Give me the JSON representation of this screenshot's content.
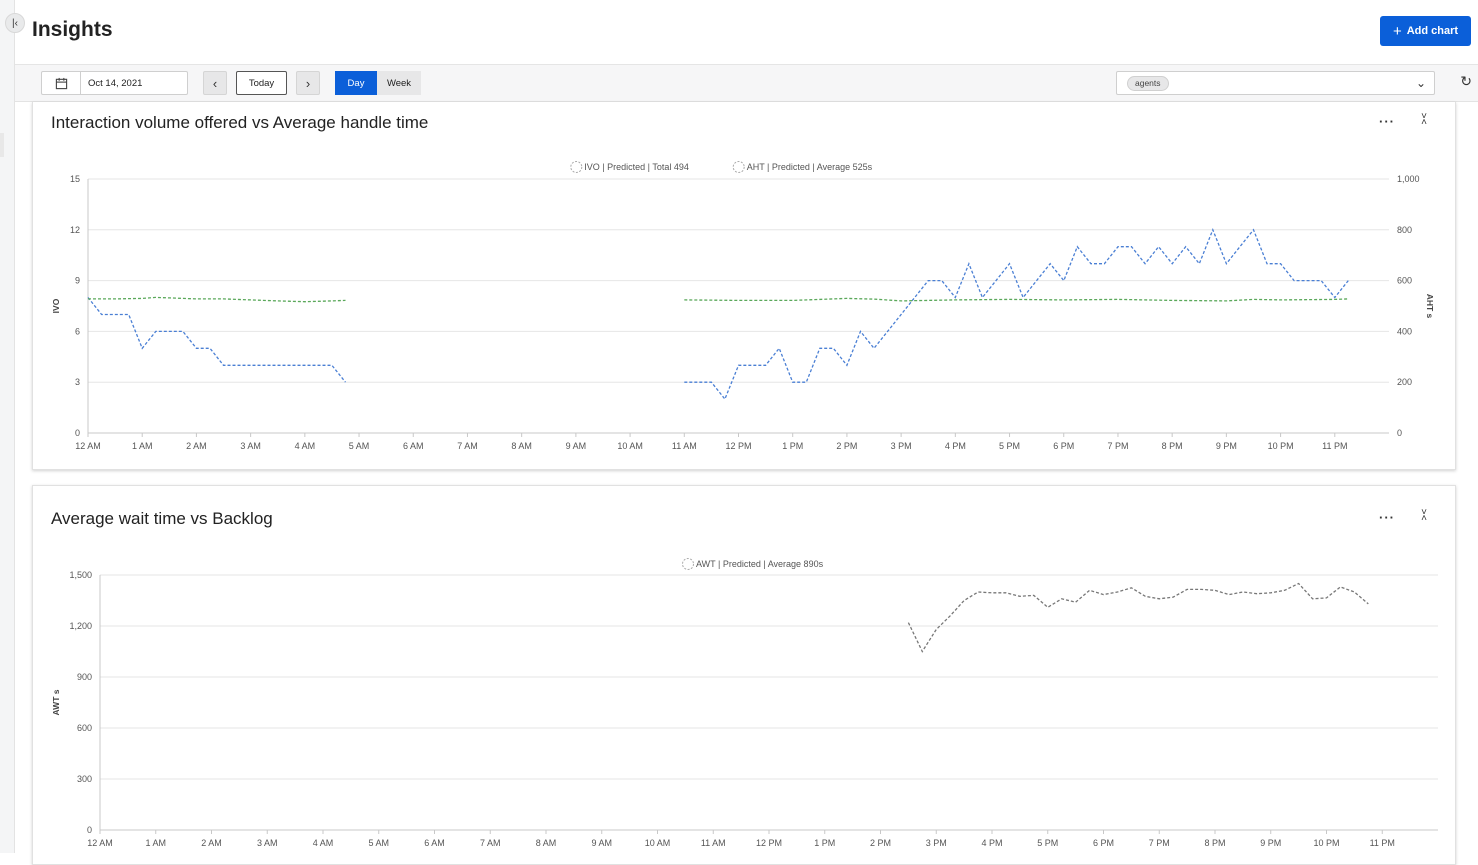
{
  "header": {
    "title": "Insights",
    "add_chart_label": "Add chart"
  },
  "toolbar": {
    "date_value": "Oct 14, 2021",
    "today_label": "Today",
    "prev_icon": "chevron-left-icon",
    "next_icon": "chevron-right-icon",
    "view_options": [
      "Day",
      "Week"
    ],
    "selected_view": "Day",
    "filter_chip": "agents"
  },
  "colors": {
    "accent": "#0b5fd9",
    "ivo_line": "#4a7fd4",
    "aht_line": "#5aa85a",
    "awt_line": "#777777"
  },
  "chart_data": [
    {
      "type": "line",
      "title": "Interaction volume offered vs Average handle time",
      "legend": [
        "IVO | Predicted | Total 494",
        "AHT | Predicted | Average 525s"
      ],
      "legend_placement": "top-center",
      "grid": true,
      "ylabel": "IVO",
      "y2label": "AHT s",
      "ylim": [
        0,
        15
      ],
      "y2lim": [
        0,
        1000
      ],
      "yticks": [
        "0",
        "3",
        "6",
        "9",
        "12",
        "15"
      ],
      "y2ticks": [
        "0",
        "200",
        "400",
        "600",
        "800",
        "1,000"
      ],
      "xticks": [
        "12 AM",
        "1 AM",
        "2 AM",
        "3 AM",
        "4 AM",
        "5 AM",
        "6 AM",
        "7 AM",
        "8 AM",
        "9 AM",
        "10 AM",
        "11 AM",
        "12 PM",
        "1 PM",
        "2 PM",
        "3 PM",
        "4 PM",
        "5 PM",
        "6 PM",
        "7 PM",
        "8 PM",
        "9 PM",
        "10 PM",
        "11 PM"
      ],
      "series": [
        {
          "name": "IVO | Predicted | Total 494",
          "axis": "left",
          "color": "#4a7fd4",
          "segments": [
            [
              [
                0,
                8
              ],
              [
                0.25,
                7
              ],
              [
                0.5,
                7
              ],
              [
                0.75,
                7
              ],
              [
                1,
                5
              ],
              [
                1.25,
                6
              ],
              [
                1.5,
                6
              ],
              [
                1.75,
                6
              ],
              [
                2,
                5
              ],
              [
                2.25,
                5
              ],
              [
                2.5,
                4
              ],
              [
                2.75,
                4
              ],
              [
                3,
                4
              ],
              [
                3.25,
                4
              ],
              [
                3.5,
                4
              ],
              [
                3.75,
                4
              ],
              [
                4,
                4
              ],
              [
                4.25,
                4
              ],
              [
                4.5,
                4
              ],
              [
                4.75,
                3
              ]
            ],
            [
              [
                11,
                3
              ],
              [
                11.25,
                3
              ],
              [
                11.5,
                3
              ],
              [
                11.75,
                2
              ],
              [
                12,
                4
              ],
              [
                12.25,
                4
              ],
              [
                12.5,
                4
              ],
              [
                12.75,
                5
              ],
              [
                13,
                3
              ],
              [
                13.25,
                3
              ],
              [
                13.5,
                5
              ],
              [
                13.75,
                5
              ],
              [
                14,
                4
              ],
              [
                14.25,
                6
              ],
              [
                14.5,
                5
              ],
              [
                14.75,
                6
              ],
              [
                15,
                7
              ],
              [
                15.25,
                8
              ],
              [
                15.5,
                9
              ],
              [
                15.75,
                9
              ],
              [
                16,
                8
              ],
              [
                16.25,
                10
              ],
              [
                16.5,
                8
              ],
              [
                16.75,
                9
              ],
              [
                17,
                10
              ],
              [
                17.25,
                8
              ],
              [
                17.5,
                9
              ],
              [
                17.75,
                10
              ],
              [
                18,
                9
              ],
              [
                18.25,
                11
              ],
              [
                18.5,
                10
              ],
              [
                18.75,
                10
              ],
              [
                19,
                11
              ],
              [
                19.25,
                11
              ],
              [
                19.5,
                10
              ],
              [
                19.75,
                11
              ],
              [
                20,
                10
              ],
              [
                20.25,
                11
              ],
              [
                20.5,
                10
              ],
              [
                20.75,
                12
              ],
              [
                21,
                10
              ],
              [
                21.25,
                11
              ],
              [
                21.5,
                12
              ],
              [
                21.75,
                10
              ],
              [
                22,
                10
              ],
              [
                22.25,
                9
              ],
              [
                22.5,
                9
              ],
              [
                22.75,
                9
              ],
              [
                23,
                8
              ],
              [
                23.25,
                9
              ]
            ]
          ]
        },
        {
          "name": "AHT | Predicted | Average 525s",
          "axis": "right",
          "color": "#5aa85a",
          "segments": [
            [
              [
                0,
                528
              ],
              [
                0.5,
                528
              ],
              [
                1,
                530
              ],
              [
                1.25,
                534
              ],
              [
                1.5,
                532
              ],
              [
                2,
                528
              ],
              [
                2.5,
                528
              ],
              [
                3,
                524
              ],
              [
                3.5,
                520
              ],
              [
                4,
                517
              ],
              [
                4.5,
                520
              ],
              [
                4.75,
                522
              ]
            ],
            [
              [
                11,
                524
              ],
              [
                12,
                522
              ],
              [
                13,
                522
              ],
              [
                14,
                530
              ],
              [
                14.5,
                527
              ],
              [
                15,
                520
              ],
              [
                16,
                524
              ],
              [
                17,
                526
              ],
              [
                18,
                524
              ],
              [
                19,
                526
              ],
              [
                20,
                522
              ],
              [
                21,
                520
              ],
              [
                21.5,
                526
              ],
              [
                22,
                524
              ],
              [
                23,
                526
              ],
              [
                23.25,
                528
              ]
            ]
          ]
        }
      ]
    },
    {
      "type": "line",
      "title": "Average wait time vs Backlog",
      "legend": [
        "AWT | Predicted | Average 890s"
      ],
      "legend_placement": "top-center",
      "grid": true,
      "ylabel": "AWT s",
      "ylim": [
        0,
        1500
      ],
      "yticks": [
        "0",
        "300",
        "600",
        "900",
        "1,200",
        "1,500"
      ],
      "xticks": [
        "12 AM",
        "1 AM",
        "2 AM",
        "3 AM",
        "4 AM",
        "5 AM",
        "6 AM",
        "7 AM",
        "8 AM",
        "9 AM",
        "10 AM",
        "11 AM",
        "12 PM",
        "1 PM",
        "2 PM",
        "3 PM",
        "4 PM",
        "5 PM",
        "6 PM",
        "7 PM",
        "8 PM",
        "9 PM",
        "10 PM",
        "11 PM"
      ],
      "series": [
        {
          "name": "AWT | Predicted | Average 890s",
          "axis": "left",
          "color": "#777777",
          "segments": [
            [
              [
                14.5,
                1220
              ],
              [
                14.75,
                1050
              ],
              [
                15,
                1180
              ],
              [
                15.25,
                1260
              ],
              [
                15.5,
                1350
              ],
              [
                15.75,
                1400
              ],
              [
                16,
                1395
              ],
              [
                16.25,
                1395
              ],
              [
                16.5,
                1375
              ],
              [
                16.75,
                1380
              ],
              [
                17,
                1310
              ],
              [
                17.25,
                1360
              ],
              [
                17.5,
                1340
              ],
              [
                17.75,
                1410
              ],
              [
                18,
                1385
              ],
              [
                18.25,
                1400
              ],
              [
                18.5,
                1425
              ],
              [
                18.75,
                1375
              ],
              [
                19,
                1360
              ],
              [
                19.25,
                1370
              ],
              [
                19.5,
                1415
              ],
              [
                19.75,
                1415
              ],
              [
                20,
                1410
              ],
              [
                20.25,
                1385
              ],
              [
                20.5,
                1400
              ],
              [
                20.75,
                1390
              ],
              [
                21,
                1395
              ],
              [
                21.25,
                1410
              ],
              [
                21.5,
                1450
              ],
              [
                21.75,
                1360
              ],
              [
                22,
                1365
              ],
              [
                22.25,
                1430
              ],
              [
                22.5,
                1400
              ],
              [
                22.75,
                1330
              ]
            ]
          ]
        }
      ]
    }
  ]
}
